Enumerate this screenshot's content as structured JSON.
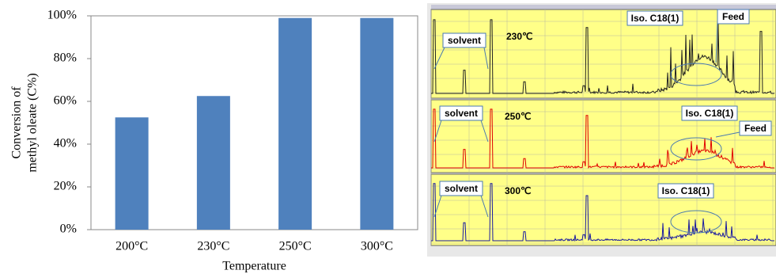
{
  "chart_data": {
    "type": "bar",
    "categories": [
      "200°C",
      "230°C",
      "250°C",
      "300°C"
    ],
    "values": [
      52.5,
      62.5,
      99,
      99
    ],
    "color": "#4f81bd",
    "x_label": "Temperature",
    "y_label": [
      "Conversion of",
      "methyl oleate (C%)"
    ],
    "ylim": [
      0,
      100
    ],
    "yticks": [
      {
        "value": 0,
        "label": "0%"
      },
      {
        "value": 20,
        "label": "20%"
      },
      {
        "value": 40,
        "label": "40%"
      },
      {
        "value": 60,
        "label": "60%"
      },
      {
        "value": 80,
        "label": "80%"
      },
      {
        "value": 100,
        "label": "100%"
      }
    ]
  },
  "chromatograms": [
    {
      "temperature": "230℃",
      "solvent": "solvent",
      "iso": "Iso. C18(1)",
      "feed": "Feed"
    },
    {
      "temperature": "250℃",
      "solvent": "solvent",
      "iso": "Iso. C18(1)",
      "feed": "Feed"
    },
    {
      "temperature": "300℃",
      "solvent": "solvent",
      "iso": "Iso. C18(1)"
    }
  ]
}
